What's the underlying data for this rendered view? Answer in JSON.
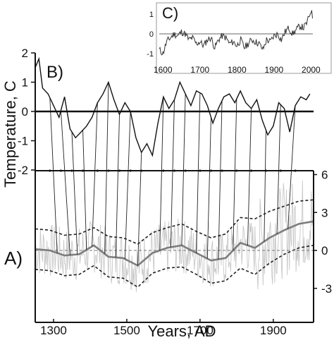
{
  "chart_data": [
    {
      "panel_label": "A)",
      "type": "line",
      "xlabel": "Years, AD",
      "ylabel": "",
      "xlim": [
        1250,
        2010
      ],
      "ylim": [
        -5,
        7
      ],
      "x_ticks": [
        1300,
        1500,
        1700,
        1900
      ],
      "y_ticks": [
        6,
        3,
        0,
        -3
      ],
      "y_tick_labels": [
        "6",
        "3",
        "0",
        "-3"
      ],
      "x_tick_labels": [
        "1300",
        "1500",
        "1700",
        "1900"
      ],
      "series": [
        {
          "style": "smoothed solid gray",
          "x": [
            1250,
            1290,
            1330,
            1370,
            1410,
            1450,
            1490,
            1530,
            1570,
            1610,
            1650,
            1690,
            1730,
            1770,
            1810,
            1850,
            1890,
            1930,
            1970,
            2010
          ],
          "values": [
            0.1,
            0.0,
            -0.4,
            -0.3,
            0.4,
            -0.5,
            -0.6,
            -1.2,
            -0.2,
            0.2,
            0.4,
            -0.2,
            -0.8,
            -0.6,
            0.6,
            0.2,
            1.0,
            1.6,
            2.1,
            2.3
          ]
        },
        {
          "style": "upper dashed bound",
          "x": [
            1250,
            1290,
            1330,
            1370,
            1410,
            1450,
            1490,
            1530,
            1570,
            1610,
            1650,
            1690,
            1730,
            1770,
            1810,
            1850,
            1890,
            1930,
            1970,
            2010
          ],
          "values": [
            1.7,
            1.6,
            1.2,
            1.3,
            1.8,
            1.1,
            1.0,
            0.5,
            1.4,
            1.8,
            2.1,
            1.5,
            1.0,
            1.3,
            2.6,
            2.5,
            3.1,
            3.5,
            3.9,
            4.0
          ]
        },
        {
          "style": "lower dashed bound",
          "x": [
            1250,
            1290,
            1330,
            1370,
            1410,
            1450,
            1490,
            1530,
            1570,
            1610,
            1650,
            1690,
            1730,
            1770,
            1810,
            1850,
            1890,
            1930,
            1970,
            2010
          ],
          "values": [
            -1.5,
            -1.6,
            -2.0,
            -1.9,
            -1.2,
            -2.1,
            -2.2,
            -2.9,
            -1.8,
            -1.4,
            -1.3,
            -1.9,
            -2.6,
            -2.4,
            -1.4,
            -1.9,
            -1.0,
            -0.3,
            0.2,
            0.4
          ]
        }
      ]
    },
    {
      "panel_label": "B)",
      "type": "line",
      "xlabel": "",
      "ylabel": "Temperature, C",
      "xlim": [
        1250,
        2010
      ],
      "ylim": [
        -2,
        2
      ],
      "y_ticks": [
        2,
        1,
        0,
        -1,
        -2
      ],
      "y_tick_labels": [
        "2",
        "1",
        "0",
        "-1",
        "-2"
      ],
      "series": [
        {
          "x": [
            1250,
            1260,
            1270,
            1285,
            1300,
            1315,
            1330,
            1345,
            1360,
            1375,
            1390,
            1405,
            1420,
            1435,
            1450,
            1465,
            1480,
            1495,
            1510,
            1525,
            1540,
            1555,
            1570,
            1585,
            1600,
            1615,
            1630,
            1645,
            1660,
            1675,
            1690,
            1705,
            1720,
            1735,
            1750,
            1765,
            1780,
            1795,
            1810,
            1825,
            1840,
            1855,
            1870,
            1885,
            1900,
            1915,
            1930,
            1945,
            1960,
            1975,
            1990,
            2000
          ],
          "values": [
            1.5,
            1.8,
            0.8,
            0.6,
            0.2,
            -0.2,
            0.5,
            -0.6,
            -0.9,
            -0.7,
            -0.5,
            -0.2,
            0.3,
            0.6,
            1.0,
            0.4,
            -0.1,
            0.3,
            0.0,
            -0.9,
            -1.4,
            -1.1,
            -1.5,
            -0.4,
            0.5,
            0.1,
            0.4,
            1.0,
            0.6,
            0.2,
            0.7,
            0.6,
            0.2,
            -0.4,
            0.1,
            0.5,
            0.6,
            0.3,
            0.7,
            0.3,
            0.1,
            0.4,
            -0.3,
            -0.8,
            -0.5,
            0.3,
            0.1,
            -0.7,
            0.2,
            0.5,
            0.4,
            0.6
          ]
        }
      ]
    },
    {
      "panel_label": "C)",
      "type": "line",
      "xlabel": "",
      "ylabel": "",
      "xlim": [
        1590,
        2005
      ],
      "ylim": [
        -1.6,
        1.6
      ],
      "x_ticks": [
        1600,
        1700,
        1800,
        1900,
        2000
      ],
      "x_tick_labels": [
        "1600",
        "1700",
        "1800",
        "1900",
        "2000"
      ],
      "y_ticks": [
        1,
        0,
        -1
      ],
      "y_tick_labels": [
        "1",
        "0",
        "-1"
      ],
      "series": [
        {
          "x": [
            1590,
            1600,
            1610,
            1620,
            1630,
            1640,
            1650,
            1660,
            1670,
            1680,
            1690,
            1700,
            1710,
            1720,
            1730,
            1740,
            1750,
            1760,
            1770,
            1780,
            1790,
            1800,
            1810,
            1820,
            1830,
            1840,
            1850,
            1860,
            1870,
            1880,
            1890,
            1900,
            1910,
            1920,
            1930,
            1940,
            1950,
            1960,
            1970,
            1980,
            1990,
            2000,
            2005
          ],
          "values": [
            -0.8,
            -1.0,
            -0.4,
            -0.2,
            0.0,
            -0.1,
            0.1,
            0.0,
            -0.3,
            -0.2,
            -0.5,
            -0.4,
            -0.6,
            -0.3,
            -0.2,
            -0.7,
            -0.3,
            -0.1,
            -0.2,
            -0.5,
            -0.4,
            -0.6,
            -0.3,
            -0.7,
            -0.5,
            -0.3,
            -0.4,
            -0.5,
            -0.8,
            -0.3,
            -0.4,
            -0.1,
            0.0,
            -0.3,
            0.1,
            0.3,
            0.0,
            0.2,
            0.4,
            0.3,
            0.6,
            1.2,
            0.8
          ]
        }
      ]
    }
  ]
}
